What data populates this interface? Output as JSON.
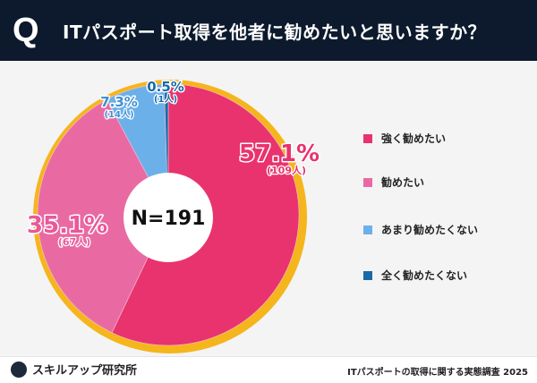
{
  "header": {
    "q_mark": "Q",
    "title": "ITパスポート取得を他者に勧めたいと思いますか？"
  },
  "chart_data": {
    "type": "pie",
    "title": "ITパスポート取得を他者に勧めたいと思いますか？",
    "center_label": "N=191",
    "categories": [
      "強く勧めたい",
      "勧めたい",
      "あまり勧めたくない",
      "全く勧めたくない"
    ],
    "values": [
      57.1,
      35.1,
      7.3,
      0.5
    ],
    "counts": [
      109,
      67,
      14,
      1
    ],
    "value_labels": [
      "57.1%",
      "35.1%",
      "7.3%",
      "0.5%"
    ],
    "count_labels": [
      "(109人)",
      "(67人)",
      "(14人)",
      "(1人)"
    ],
    "colors": [
      "#e8336e",
      "#e96aa2",
      "#6cb0ea",
      "#1b6aa8"
    ],
    "ring_color": "#f5b51c",
    "legend_position": "right"
  },
  "footer": {
    "brand": "スキルアップ研究所",
    "source": "ITパスポートの取得に関する実態調査 2025"
  }
}
